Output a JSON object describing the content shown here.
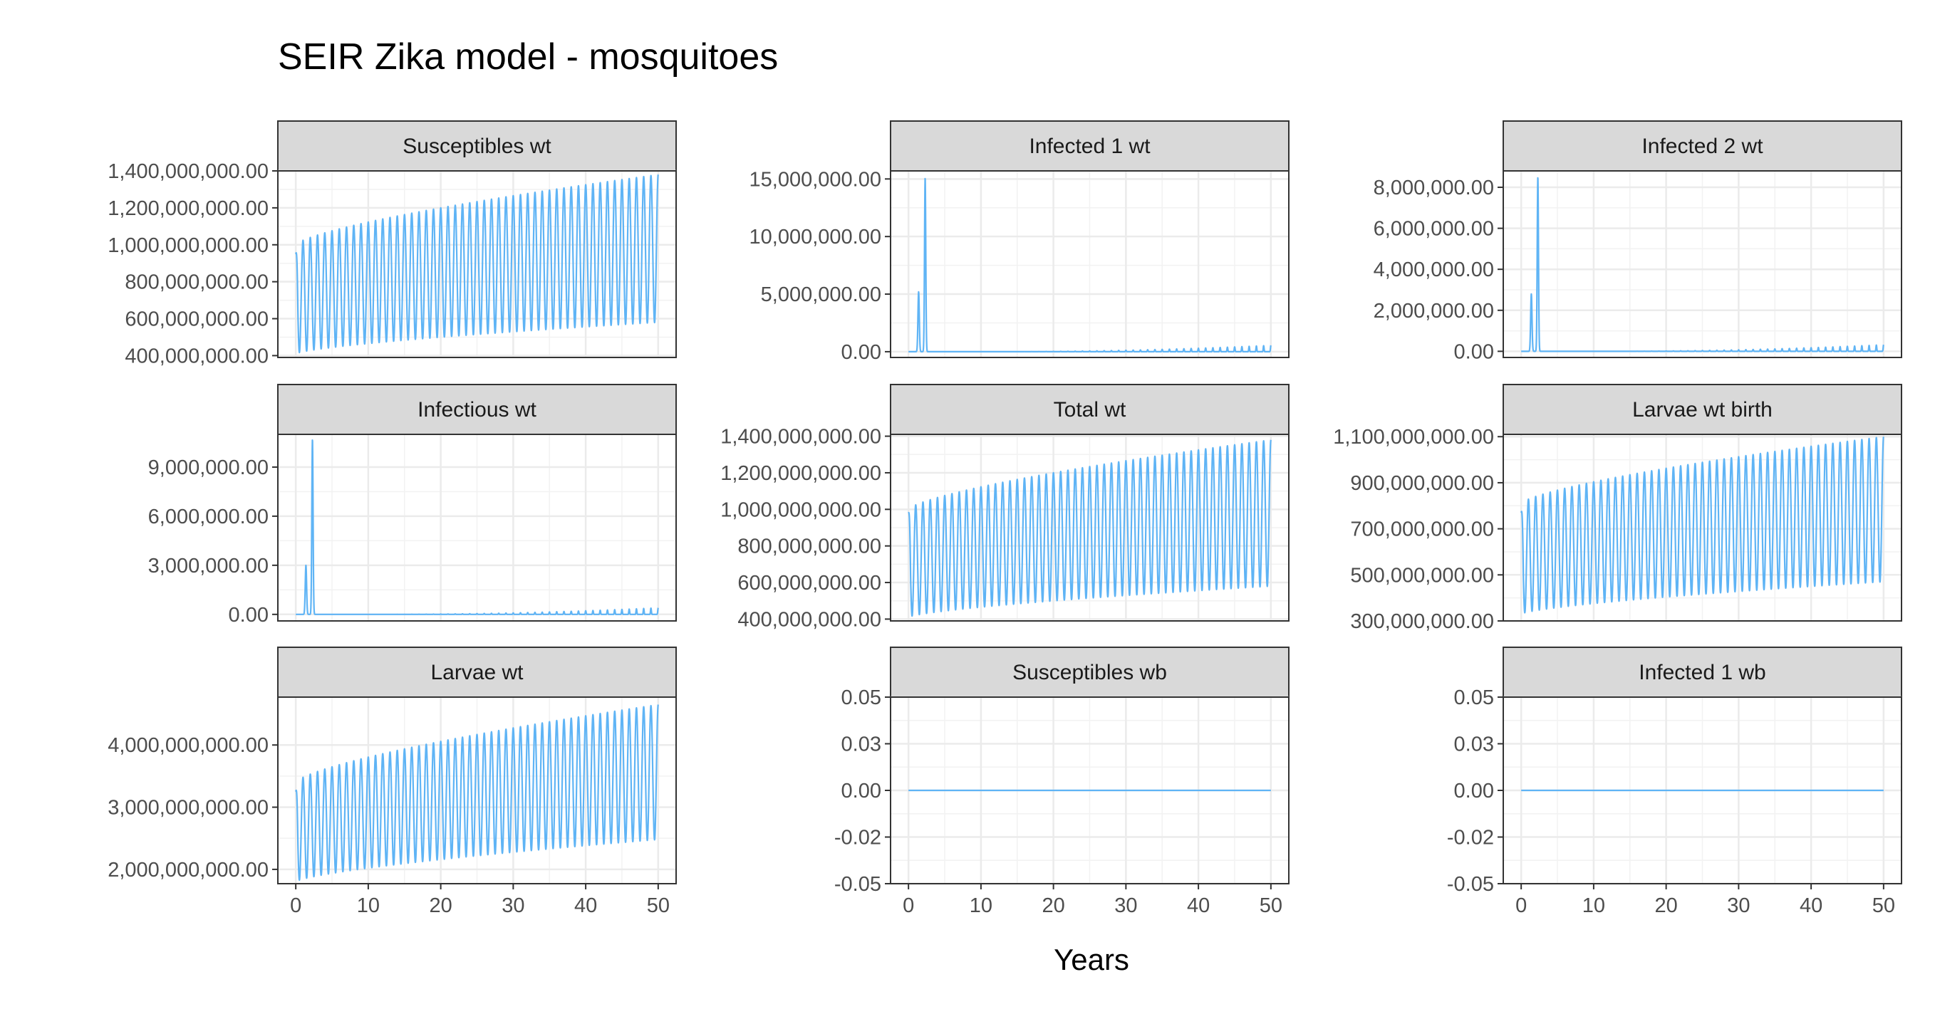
{
  "chart_data": {
    "type": "line",
    "layout": "facet-grid-3x3",
    "title": "SEIR Zika model - mosquitoes",
    "xlabel": "Years",
    "ylabel": "",
    "series_color": "#5fb4f5",
    "strip_color": "#d9d9d9",
    "grid": true,
    "panels": [
      {
        "name": "Susceptibles wt",
        "x_range": [
          0,
          50
        ],
        "x_ticks": [
          "0",
          "10",
          "20",
          "30",
          "40",
          "50"
        ],
        "ylim": [
          390000000,
          1400000000
        ],
        "y_ticks": [
          400000000,
          600000000,
          800000000,
          1000000000,
          1200000000,
          1400000000
        ],
        "y_tick_labels": [
          "400,000,000.00",
          "600,000,000.00",
          "800,000,000.00",
          "1,000,000,000.00",
          "1,200,000,000.00",
          "1,400,000,000.00"
        ],
        "show_x_axis": false,
        "shape": "seasonal",
        "params": {
          "period": 1,
          "min_start": 410000000,
          "min_end": 580000000,
          "max_start": 1000000000,
          "max_end": 1380000000,
          "start": 950000000
        }
      },
      {
        "name": "Infected 1 wt",
        "x_range": [
          0,
          50
        ],
        "x_ticks": [
          "0",
          "10",
          "20",
          "30",
          "40",
          "50"
        ],
        "ylim": [
          -500000,
          15700000
        ],
        "y_ticks": [
          0,
          5000000,
          10000000,
          15000000
        ],
        "y_tick_labels": [
          "0.00",
          "5,000,000.00",
          "10,000,000.00",
          "15,000,000.00"
        ],
        "show_x_axis": false,
        "shape": "epidemic",
        "params": {
          "peak1_t": 1.4,
          "peak1_v": 5200000,
          "peak2_t": 2.3,
          "peak2_v": 15100000,
          "tail_amp": 550000,
          "tail_period": 1
        }
      },
      {
        "name": "Infected 2 wt",
        "x_range": [
          0,
          50
        ],
        "x_ticks": [
          "0",
          "10",
          "20",
          "30",
          "40",
          "50"
        ],
        "ylim": [
          -300000,
          8800000
        ],
        "y_ticks": [
          0,
          2000000,
          4000000,
          6000000,
          8000000
        ],
        "y_tick_labels": [
          "0.00",
          "2,000,000.00",
          "4,000,000.00",
          "6,000,000.00",
          "8,000,000.00"
        ],
        "show_x_axis": false,
        "shape": "epidemic",
        "params": {
          "peak1_t": 1.4,
          "peak1_v": 2800000,
          "peak2_t": 2.3,
          "peak2_v": 8500000,
          "tail_amp": 320000,
          "tail_period": 1
        }
      },
      {
        "name": "Infectious wt",
        "x_range": [
          0,
          50
        ],
        "x_ticks": [
          "0",
          "10",
          "20",
          "30",
          "40",
          "50"
        ],
        "ylim": [
          -400000,
          11000000
        ],
        "y_ticks": [
          0,
          3000000,
          6000000,
          9000000
        ],
        "y_tick_labels": [
          "0.00",
          "3,000,000.00",
          "6,000,000.00",
          "9,000,000.00"
        ],
        "show_x_axis": false,
        "shape": "epidemic",
        "params": {
          "peak1_t": 1.4,
          "peak1_v": 3000000,
          "peak2_t": 2.3,
          "peak2_v": 10700000,
          "tail_amp": 400000,
          "tail_period": 1
        }
      },
      {
        "name": "Total wt",
        "x_range": [
          0,
          50
        ],
        "x_ticks": [
          "0",
          "10",
          "20",
          "30",
          "40",
          "50"
        ],
        "ylim": [
          390000000,
          1410000000
        ],
        "y_ticks": [
          400000000,
          600000000,
          800000000,
          1000000000,
          1200000000,
          1400000000
        ],
        "y_tick_labels": [
          "400,000,000.00",
          "600,000,000.00",
          "800,000,000.00",
          "1,000,000,000.00",
          "1,200,000,000.00",
          "1,400,000,000.00"
        ],
        "show_x_axis": false,
        "shape": "seasonal",
        "params": {
          "period": 1,
          "min_start": 410000000,
          "min_end": 580000000,
          "max_start": 1000000000,
          "max_end": 1380000000,
          "start": 980000000
        }
      },
      {
        "name": "Larvae wt birth",
        "x_range": [
          0,
          50
        ],
        "x_ticks": [
          "0",
          "10",
          "20",
          "30",
          "40",
          "50"
        ],
        "ylim": [
          300000000,
          1110000000
        ],
        "y_ticks": [
          300000000,
          500000000,
          700000000,
          900000000,
          1100000000
        ],
        "y_tick_labels": [
          "300,000,000.00",
          "500,000,000.00",
          "700,000,000.00",
          "900,000,000.00",
          "1,100,000,000.00"
        ],
        "show_x_axis": false,
        "shape": "seasonal",
        "params": {
          "period": 1,
          "min_start": 330000000,
          "min_end": 470000000,
          "max_start": 810000000,
          "max_end": 1100000000,
          "start": 770000000
        }
      },
      {
        "name": "Larvae wt",
        "x_range": [
          0,
          50
        ],
        "x_ticks": [
          "0",
          "10",
          "20",
          "30",
          "40",
          "50"
        ],
        "ylim": [
          1770000000,
          4770000000
        ],
        "y_ticks": [
          2000000000,
          3000000000,
          4000000000
        ],
        "y_tick_labels": [
          "2,000,000,000.00",
          "3,000,000,000.00",
          "4,000,000,000.00"
        ],
        "show_x_axis": true,
        "shape": "seasonal",
        "params": {
          "period": 1,
          "min_start": 1800000000,
          "min_end": 2480000000,
          "max_start": 3400000000,
          "max_end": 4650000000,
          "start": 3250000000
        }
      },
      {
        "name": "Susceptibles wb",
        "x_range": [
          0,
          50
        ],
        "x_ticks": [
          "0",
          "10",
          "20",
          "30",
          "40",
          "50"
        ],
        "ylim": [
          -0.05,
          0.05
        ],
        "y_ticks": [
          -0.05,
          -0.025,
          0,
          0.025,
          0.05
        ],
        "y_tick_labels": [
          "-0.05",
          "-0.02",
          "0.00",
          "0.03",
          "0.05"
        ],
        "show_x_axis": true,
        "shape": "flat",
        "params": {
          "value": 0
        }
      },
      {
        "name": "Infected 1 wb",
        "x_range": [
          0,
          50
        ],
        "x_ticks": [
          "0",
          "10",
          "20",
          "30",
          "40",
          "50"
        ],
        "ylim": [
          -0.05,
          0.05
        ],
        "y_ticks": [
          -0.05,
          -0.025,
          0,
          0.025,
          0.05
        ],
        "y_tick_labels": [
          "-0.05",
          "-0.02",
          "0.00",
          "0.03",
          "0.05"
        ],
        "show_x_axis": true,
        "shape": "flat",
        "params": {
          "value": 0
        }
      }
    ]
  }
}
